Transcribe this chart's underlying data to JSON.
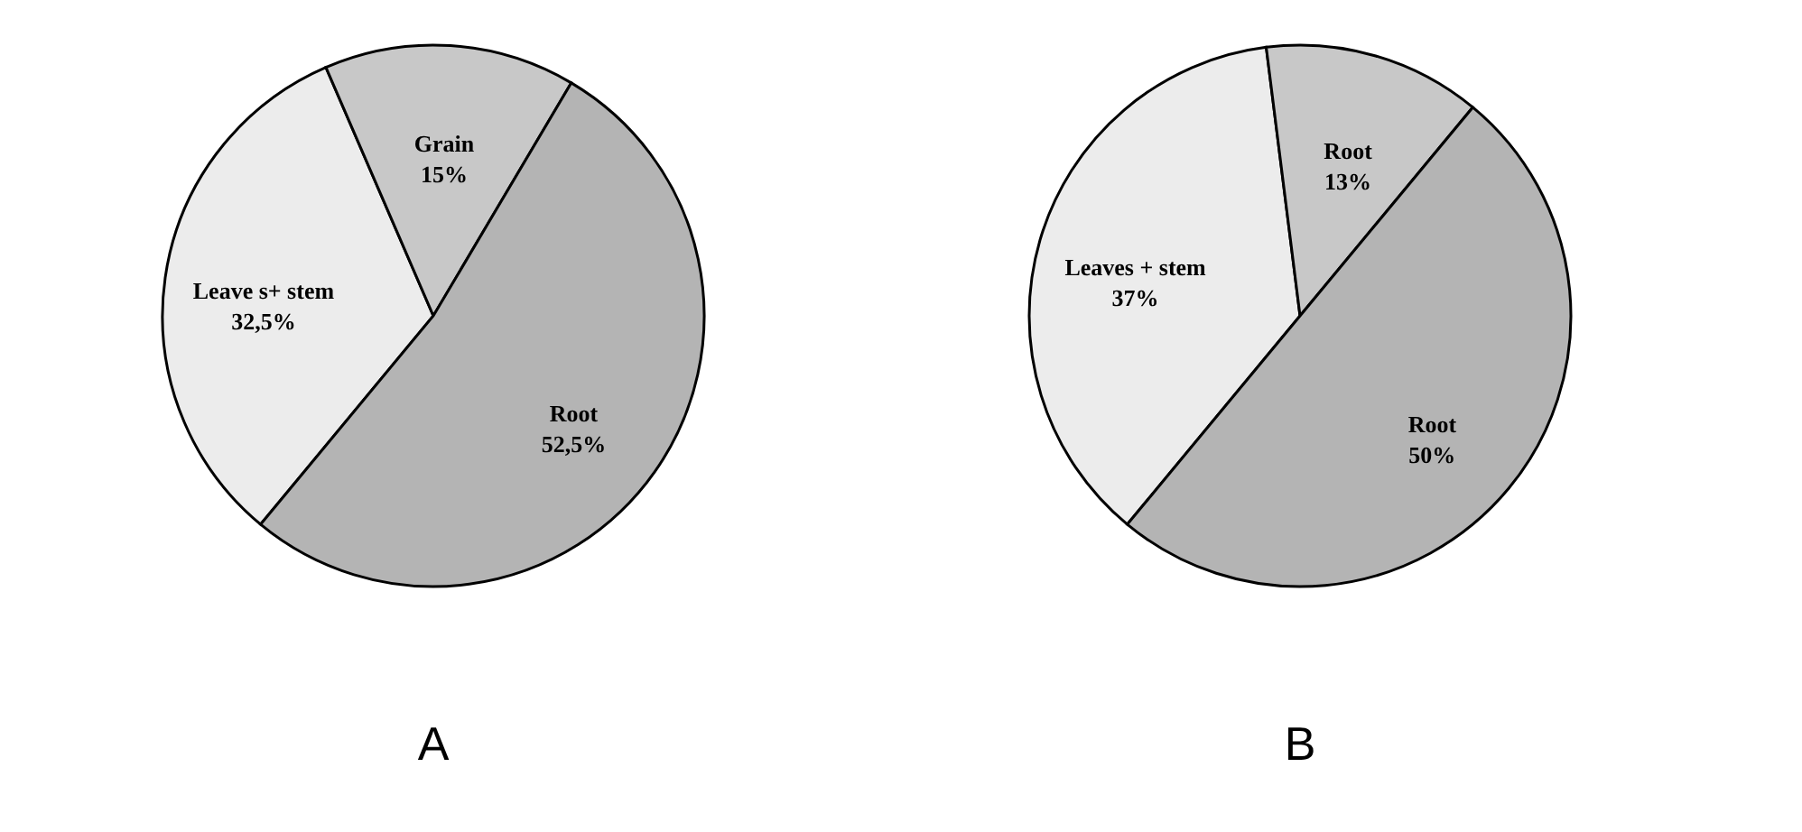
{
  "chart_data": [
    {
      "type": "pie",
      "title": "A",
      "categories": [
        "Leave s+ stem",
        "Grain",
        "Root"
      ],
      "values": [
        32.5,
        15,
        52.5
      ],
      "colors": [
        "#ececec",
        "#c8c8c8",
        "#b4b4b4"
      ],
      "value_labels": [
        "32,5%",
        "15%",
        "52,5%"
      ]
    },
    {
      "type": "pie",
      "title": "B",
      "categories": [
        "Leaves + stem",
        "Root",
        "Root"
      ],
      "values": [
        37,
        13,
        50
      ],
      "colors": [
        "#ececec",
        "#c8c8c8",
        "#b4b4b4"
      ],
      "value_labels": [
        "37%",
        "13%",
        "50%"
      ]
    }
  ]
}
